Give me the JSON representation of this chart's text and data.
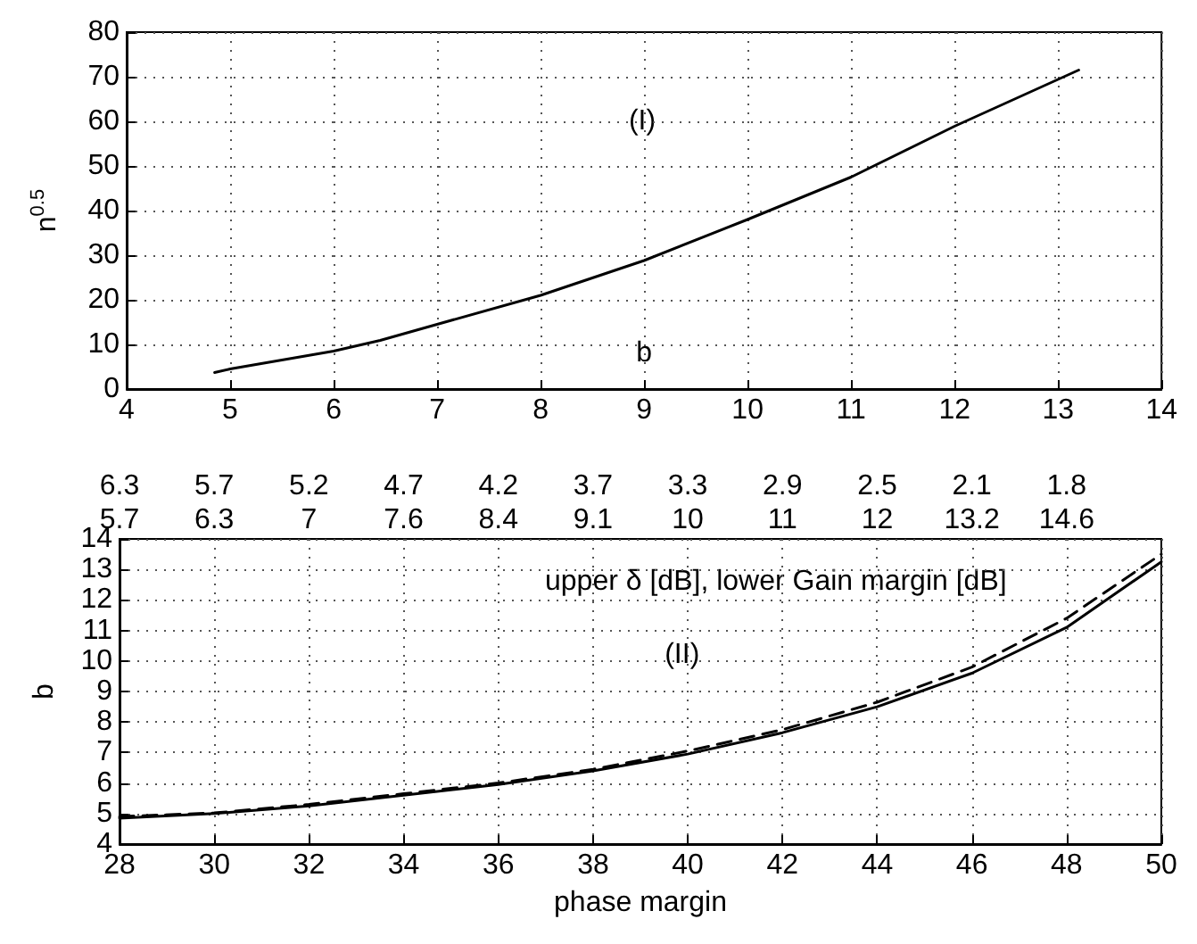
{
  "chart_data": [
    {
      "type": "line",
      "xlabel": "b",
      "ylabel": "n$^{0.5}$",
      "annotations": [
        "(I)"
      ],
      "x": [
        4.85,
        5,
        6,
        6.45,
        7,
        8,
        9,
        10,
        11,
        12,
        13.2
      ],
      "series": [
        {
          "color": "#000000",
          "line_style": "solid",
          "values": [
            3.7,
            4.5,
            8.5,
            10.9,
            14.5,
            21,
            28.8,
            38,
            47.5,
            58.9,
            71.5
          ]
        }
      ],
      "xlim": [
        4,
        14
      ],
      "xticks": [
        4,
        5,
        6,
        7,
        8,
        9,
        10,
        11,
        12,
        13,
        14
      ],
      "ylim": [
        0,
        80
      ],
      "yticks": [
        0,
        10,
        20,
        30,
        40,
        50,
        60,
        70,
        80
      ],
      "grid": true
    },
    {
      "type": "line",
      "xlabel": "phase margin",
      "ylabel": "b",
      "annotations": [
        "upper δ [dB], lower Gain margin [dB]",
        "(II)",
        "6.3\n5.7",
        "5.7\n6.3",
        "5.2\n7",
        "4.7\n7.6",
        "4.2\n8.4",
        "3.7\n9.1",
        "3.3\n10",
        "2.9\n11",
        "2.5\n12",
        "2.1\n13.2",
        "1.8\n14.6"
      ],
      "x": [
        28,
        30,
        32,
        34,
        36,
        38,
        40,
        42,
        44,
        46,
        48,
        50
      ],
      "series": [
        {
          "color": "#000000",
          "line_style": "solid",
          "values": [
            4.85,
            5.0,
            5.25,
            5.6,
            5.95,
            6.4,
            6.95,
            7.65,
            8.5,
            9.6,
            11.1,
            13.25
          ]
        },
        {
          "color": "#000000",
          "line_style": "dashed",
          "values": [
            4.9,
            5.02,
            5.3,
            5.65,
            6.0,
            6.45,
            7.05,
            7.75,
            8.65,
            9.8,
            11.4,
            13.5
          ]
        }
      ],
      "xlim": [
        28,
        50
      ],
      "xticks": [
        28,
        30,
        32,
        34,
        36,
        38,
        40,
        42,
        44,
        46,
        48,
        50
      ],
      "ylim": [
        4,
        14
      ],
      "yticks": [
        4,
        5,
        6,
        7,
        8,
        9,
        10,
        11,
        12,
        13,
        14
      ],
      "grid": true
    }
  ]
}
